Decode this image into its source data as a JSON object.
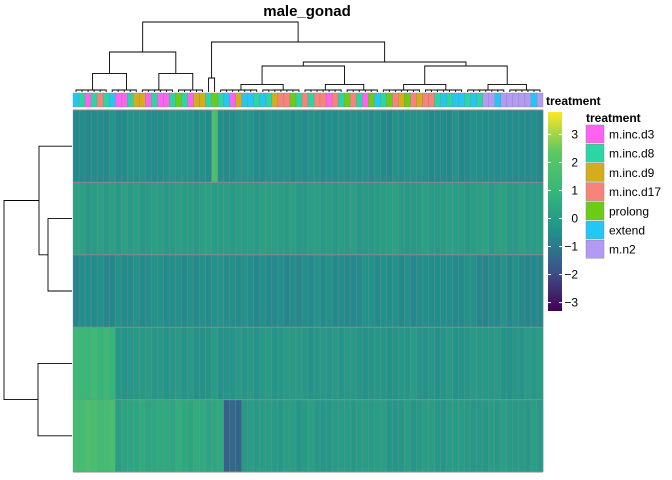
{
  "chart_data": {
    "type": "heatmap",
    "title": "male_gonad",
    "n_columns": 78,
    "n_rows": 5,
    "annotation_label": "treatment",
    "legend": {
      "color_scale": {
        "ticks": [
          3,
          2,
          1,
          0,
          -1,
          -2,
          -3
        ],
        "range": [
          -3.3,
          3.8
        ],
        "colors": [
          "#440154",
          "#3b528b",
          "#21908c",
          "#35b779",
          "#5dc863",
          "#fde725"
        ]
      },
      "annotation_title": "treatment",
      "categories": [
        {
          "name": "m.inc.d3",
          "color": "#ff61f0"
        },
        {
          "name": "m.inc.d8",
          "color": "#2bd6a5"
        },
        {
          "name": "m.inc.d9",
          "color": "#d6ac1b"
        },
        {
          "name": "m.inc.d17",
          "color": "#f8837b"
        },
        {
          "name": "prolong",
          "color": "#6bcc16"
        },
        {
          "name": "extend",
          "color": "#21c8f5"
        },
        {
          "name": "m.n2",
          "color": "#b39bf5"
        }
      ]
    },
    "column_treatments": [
      "extend",
      "m.inc.d8",
      "m.inc.d3",
      "m.inc.d8",
      "m.inc.d17",
      "m.inc.d8",
      "extend",
      "m.inc.d3",
      "m.inc.d3",
      "m.inc.d8",
      "m.inc.d9",
      "m.inc.d9",
      "m.inc.d3",
      "m.inc.d8",
      "m.inc.d3",
      "m.inc.d3",
      "m.inc.d8",
      "prolong",
      "m.inc.d8",
      "m.inc.d3",
      "m.inc.d9",
      "m.inc.d9",
      "m.inc.d8",
      "prolong",
      "m.inc.d8",
      "extend",
      "m.inc.d3",
      "m.inc.d9",
      "extend",
      "extend",
      "m.inc.d8",
      "extend",
      "m.inc.d8",
      "m.inc.d9",
      "m.inc.d17",
      "m.inc.d17",
      "prolong",
      "m.inc.d8",
      "m.inc.d17",
      "m.inc.d8",
      "m.inc.d17",
      "m.inc.d17",
      "m.inc.d3",
      "m.inc.d17",
      "m.inc.d8",
      "prolong",
      "m.inc.d17",
      "m.inc.d8",
      "m.inc.d3",
      "prolong",
      "extend",
      "m.inc.d8",
      "prolong",
      "m.inc.d17",
      "m.inc.d9",
      "prolong",
      "m.inc.d17",
      "m.inc.d9",
      "m.inc.d17",
      "m.inc.d17",
      "m.inc.d8",
      "extend",
      "m.inc.d8",
      "extend",
      "extend",
      "m.inc.d8",
      "extend",
      "m.inc.d8",
      "m.n2",
      "m.n2",
      "extend",
      "m.n2",
      "m.n2",
      "m.n2",
      "m.n2",
      "m.n2",
      "extend",
      "m.n2"
    ],
    "row_bands": [
      {
        "base": -0.45,
        "special": {
          "col": 23,
          "value": 1.7
        }
      },
      {
        "base": 0.05
      },
      {
        "base": -0.5
      },
      {
        "base": -0.2,
        "left_cols": 7,
        "left_value": 1.1
      },
      {
        "base": -0.05,
        "left_cols": 7,
        "left_value": 1.55,
        "mid_cols": [
          8,
          24
        ],
        "mid_value": 0.45,
        "dark_cols": [
          25,
          27
        ],
        "dark_value": -1.5
      }
    ]
  }
}
